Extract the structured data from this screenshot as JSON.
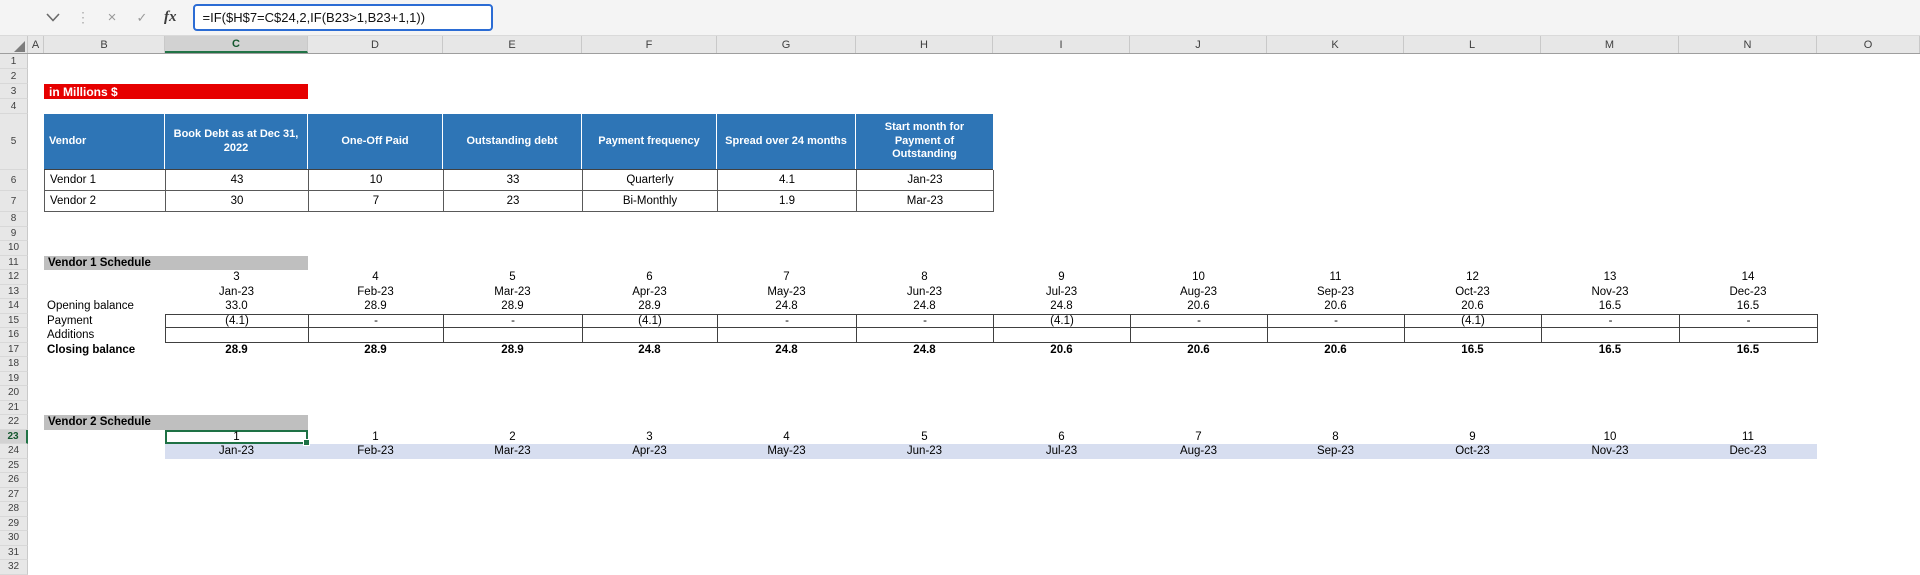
{
  "formula_bar": {
    "formula": "=IF($H$7=C$24,2,IF(B23>1,B23+1,1))",
    "fx_label": "fx",
    "cancel_label": "×",
    "enter_label": "✓",
    "dots": "⋮"
  },
  "grid": {
    "column_letters": [
      "A",
      "B",
      "C",
      "D",
      "E",
      "F",
      "G",
      "H",
      "I",
      "J",
      "K",
      "L",
      "M",
      "N",
      "O"
    ],
    "row_numbers": [
      "1",
      "2",
      "3",
      "4",
      "5",
      "6",
      "7",
      "8",
      "9",
      "10",
      "11",
      "12",
      "13",
      "14",
      "15",
      "16",
      "17",
      "18",
      "19",
      "20",
      "21",
      "22",
      "23",
      "24",
      "25",
      "26",
      "27",
      "28",
      "29",
      "30",
      "31",
      "32"
    ],
    "selected_cell": "C23",
    "selected_column": "C",
    "selected_row": "23"
  },
  "banner": {
    "text": "in Millions $"
  },
  "vendor_table": {
    "headers": [
      "Vendor",
      "Book Debt as at Dec 31, 2022",
      "One-Off Paid",
      "Outstanding debt",
      "Payment frequency",
      "Spread over 24 months",
      "Start month for Payment of Outstanding"
    ],
    "rows": [
      [
        "Vendor 1",
        "43",
        "10",
        "33",
        "Quarterly",
        "4.1",
        "Jan-23"
      ],
      [
        "Vendor 2",
        "30",
        "7",
        "23",
        "Bi-Monthly",
        "1.9",
        "Mar-23"
      ]
    ]
  },
  "vendor1_schedule": {
    "title": "Vendor 1 Schedule",
    "counters": [
      "3",
      "4",
      "5",
      "6",
      "7",
      "8",
      "9",
      "10",
      "11",
      "12",
      "13",
      "14"
    ],
    "months": [
      "Jan-23",
      "Feb-23",
      "Mar-23",
      "Apr-23",
      "May-23",
      "Jun-23",
      "Jul-23",
      "Aug-23",
      "Sep-23",
      "Oct-23",
      "Nov-23",
      "Dec-23"
    ],
    "opening_label": "Opening balance",
    "opening": [
      "33.0",
      "28.9",
      "28.9",
      "28.9",
      "24.8",
      "24.8",
      "24.8",
      "20.6",
      "20.6",
      "20.6",
      "16.5",
      "16.5"
    ],
    "payment_label": "Payment",
    "payment": [
      "(4.1)",
      "-",
      "-",
      "(4.1)",
      "-",
      "-",
      "(4.1)",
      "-",
      "-",
      "(4.1)",
      "-",
      "-"
    ],
    "additions_label": "Additions",
    "additions": [
      "",
      "",
      "",
      "",
      "",
      "",
      "",
      "",
      "",
      "",
      "",
      ""
    ],
    "closing_label": "Closing balance",
    "closing": [
      "28.9",
      "28.9",
      "28.9",
      "24.8",
      "24.8",
      "24.8",
      "20.6",
      "20.6",
      "20.6",
      "16.5",
      "16.5",
      "16.5"
    ]
  },
  "vendor2_schedule": {
    "title": "Vendor 2 Schedule",
    "counters": [
      "1",
      "1",
      "2",
      "3",
      "4",
      "5",
      "6",
      "7",
      "8",
      "9",
      "10",
      "11"
    ],
    "months": [
      "Jan-23",
      "Feb-23",
      "Mar-23",
      "Apr-23",
      "May-23",
      "Jun-23",
      "Jul-23",
      "Aug-23",
      "Sep-23",
      "Oct-23",
      "Nov-23",
      "Dec-23"
    ]
  },
  "colors": {
    "banner_red": "#e60000",
    "table_header_blue": "#2e75b6",
    "section_gray": "#bfbfbf",
    "band_lavender": "#d7def0",
    "selection_green": "#217346",
    "formula_border_blue": "#2b6cd4"
  }
}
